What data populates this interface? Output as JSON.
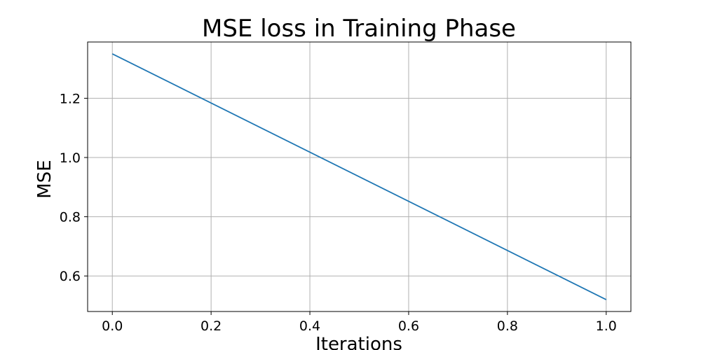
{
  "chart_data": {
    "type": "line",
    "title": "MSE loss in Training Phase",
    "xlabel": "Iterations",
    "ylabel": "MSE",
    "xlim": [
      -0.05,
      1.05
    ],
    "ylim": [
      0.48,
      1.39
    ],
    "grid": true,
    "x_ticks": [
      "0.0",
      "0.2",
      "0.4",
      "0.6",
      "0.8",
      "1.0"
    ],
    "y_ticks": [
      "0.6",
      "0.8",
      "1.0",
      "1.2"
    ],
    "series": [
      {
        "x": [
          0.0,
          1.0
        ],
        "y": [
          1.35,
          0.52
        ],
        "color": "#1f77b4"
      }
    ]
  }
}
